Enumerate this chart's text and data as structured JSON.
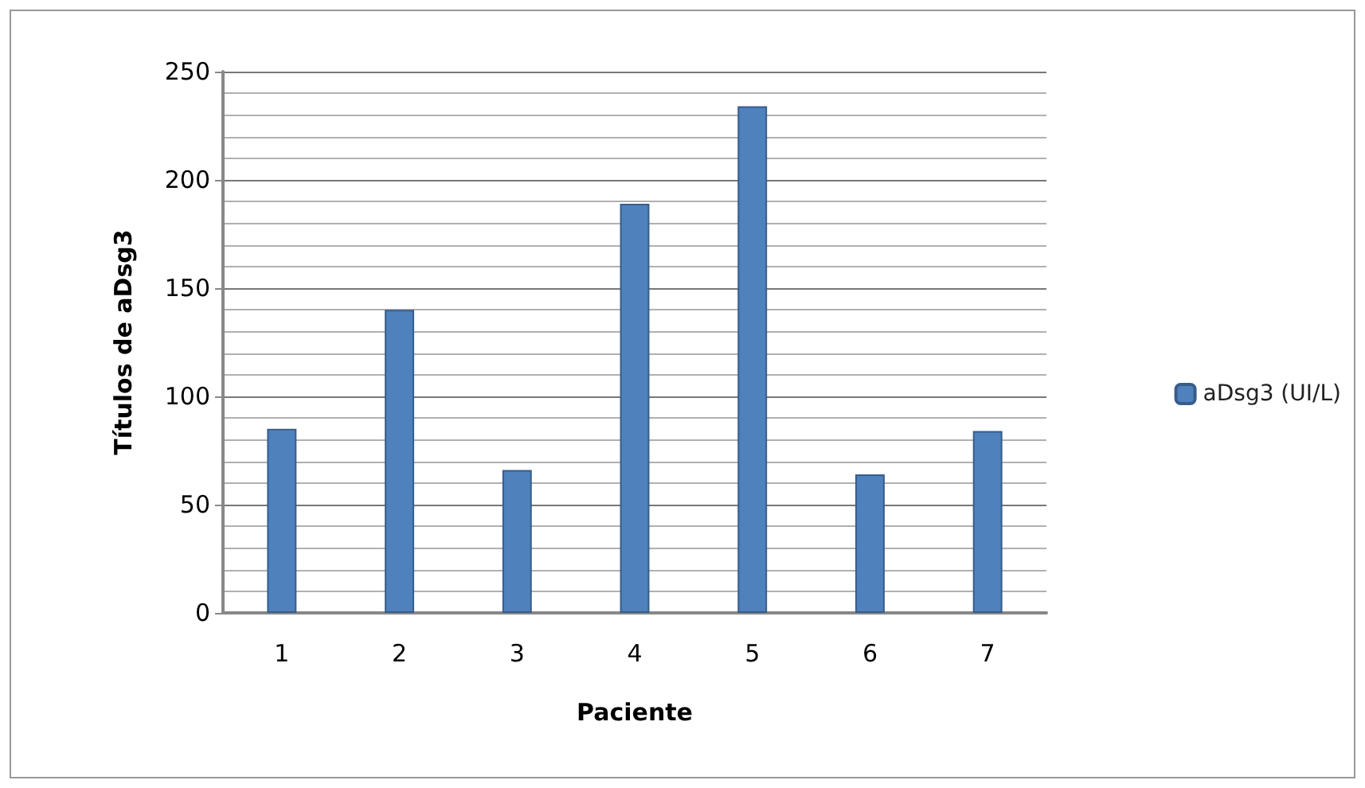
{
  "chart_data": {
    "type": "bar",
    "xlabel": "Paciente",
    "ylabel": "Títulos de aDsg3",
    "categories": [
      "1",
      "2",
      "3",
      "4",
      "5",
      "6",
      "7"
    ],
    "series": [
      {
        "name": "aDsg3 (UI/L)",
        "color": "#4f81bd",
        "values": [
          85,
          140,
          66,
          189,
          234,
          64,
          84
        ]
      }
    ],
    "ylim": [
      0,
      250
    ],
    "yticks": [
      0,
      50,
      100,
      150,
      200,
      250
    ],
    "grid": "y",
    "legend": "right"
  }
}
